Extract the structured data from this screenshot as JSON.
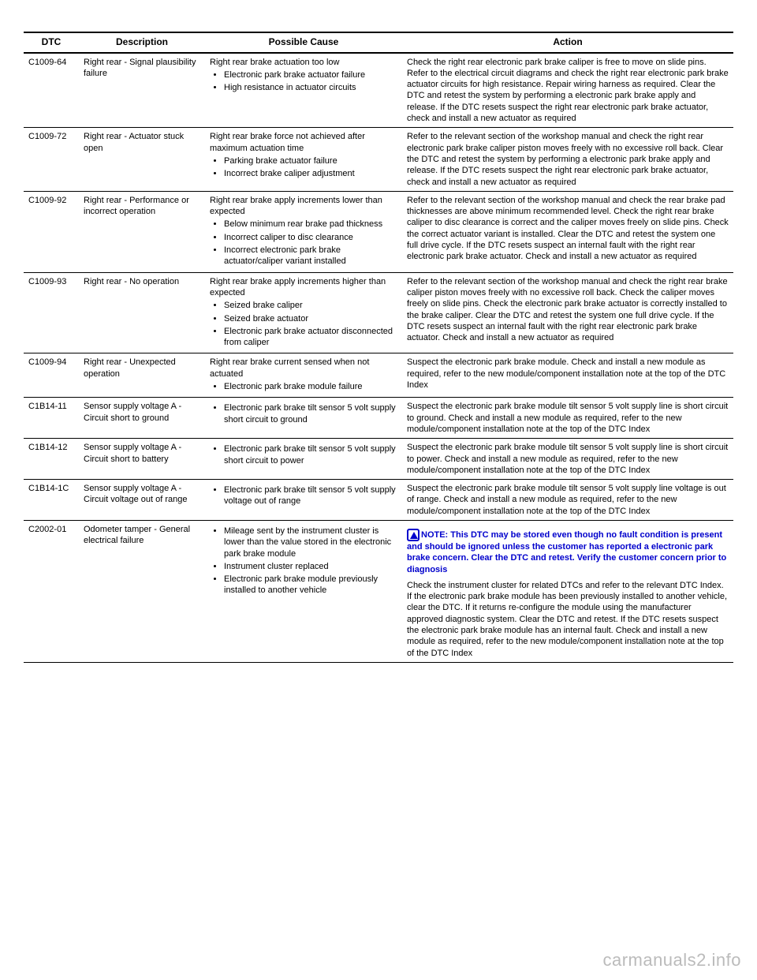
{
  "headers": {
    "dtc": "DTC",
    "desc": "Description",
    "cause": "Possible Cause",
    "action": "Action"
  },
  "colors": {
    "text": "#000000",
    "note": "#0000cc",
    "rule": "#000000",
    "watermark": "#bbbbbb",
    "background": "#ffffff"
  },
  "note": {
    "label": "NOTE:",
    "body": "This DTC may be stored even though no fault condition is present and should be ignored unless the customer has reported a electronic park brake concern. Clear the DTC and retest. Verify the customer concern prior to diagnosis"
  },
  "rows": [
    {
      "dtc": "C1009-64",
      "desc": "Right rear - Signal plausibility failure",
      "cause_prefix": "Right rear brake actuation too low",
      "causes": [
        "Electronic park brake actuator failure",
        "High resistance in actuator circuits"
      ],
      "action": "Check the right rear electronic park brake caliper is free to move on slide pins. Refer to the electrical circuit diagrams and check the right rear electronic park brake actuator circuits for high resistance. Repair wiring harness as required. Clear the DTC and retest the system by performing a electronic park brake apply and release. If the DTC resets suspect the right rear electronic park brake actuator, check and install a new actuator as required"
    },
    {
      "dtc": "C1009-72",
      "desc": "Right rear - Actuator stuck open",
      "cause_prefix": "Right rear brake force not achieved after maximum actuation time",
      "causes": [
        "Parking brake actuator failure",
        "Incorrect brake caliper adjustment"
      ],
      "action": "Refer to the relevant section of the workshop manual and check the right rear electronic park brake caliper piston moves freely with no excessive roll back. Clear the DTC and retest the system by performing a electronic park brake apply and release. If the DTC resets suspect the right rear electronic park brake actuator, check and install a new actuator as required"
    },
    {
      "dtc": "C1009-92",
      "desc": "Right rear - Performance or incorrect operation",
      "cause_prefix": "Right rear brake apply increments lower than expected",
      "causes": [
        "Below minimum rear brake pad thickness",
        "Incorrect caliper to disc clearance",
        "Incorrect electronic park brake actuator/caliper variant installed"
      ],
      "action": "Refer to the relevant section of the workshop manual and check the rear brake pad thicknesses are above minimum recommended level. Check the right rear brake caliper to disc clearance is correct and the caliper moves freely on slide pins. Check the correct actuator variant is installed. Clear the DTC and retest the system one full drive cycle. If the DTC resets suspect an internal fault with the right rear electronic park brake actuator. Check and install a new actuator as required"
    },
    {
      "dtc": "C1009-93",
      "desc": "Right rear - No operation",
      "cause_prefix": "Right rear brake apply increments higher than expected",
      "causes": [
        "Seized brake caliper",
        "Seized brake actuator",
        "Electronic park brake actuator disconnected from caliper"
      ],
      "action": "Refer to the relevant section of the workshop manual and check the right rear brake caliper piston moves freely with no excessive roll back. Check the caliper moves freely on slide pins. Check the electronic park brake actuator is correctly installed to the brake caliper. Clear the DTC and retest the system one full drive cycle. If the DTC resets suspect an internal fault with the right rear electronic park brake actuator. Check and install a new actuator as required"
    },
    {
      "dtc": "C1009-94",
      "desc": "Right rear - Unexpected operation",
      "cause_prefix": "Right rear brake current sensed when not actuated",
      "causes": [
        "Electronic park brake module failure"
      ],
      "action": "Suspect the electronic park brake module. Check and install a new module as required, refer to the new module/component installation note at the top of the DTC Index"
    },
    {
      "dtc": "C1B14-11",
      "desc": "Sensor supply voltage A - Circuit short to ground",
      "cause_prefix": "",
      "causes": [
        "Electronic park brake tilt sensor 5 volt supply short circuit to ground"
      ],
      "action": "Suspect the electronic park brake module tilt sensor 5 volt supply line is short circuit to ground. Check and install a new module as required, refer to the new module/component installation note at the top of the DTC Index"
    },
    {
      "dtc": "C1B14-12",
      "desc": "Sensor supply voltage A - Circuit short to battery",
      "cause_prefix": "",
      "causes": [
        "Electronic park brake tilt sensor 5 volt supply short circuit to power"
      ],
      "action": "Suspect the electronic park brake module tilt sensor 5 volt supply line is short circuit to power. Check and install a new module as required, refer to the new module/component installation note at the top of the DTC Index"
    },
    {
      "dtc": "C1B14-1C",
      "desc": "Sensor supply voltage A - Circuit voltage out of range",
      "cause_prefix": "",
      "causes": [
        "Electronic park brake tilt sensor 5 volt supply voltage out of range"
      ],
      "action": "Suspect the electronic park brake module tilt sensor 5 volt supply line voltage is out of range. Check and install a new module as required, refer to the new module/component installation note at the top of the DTC Index"
    },
    {
      "dtc": "C2002-01",
      "desc": "Odometer tamper - General electrical failure",
      "cause_prefix": "",
      "causes": [
        "Mileage sent by the instrument cluster is lower than the value stored in the electronic park brake module",
        "Instrument cluster replaced",
        "Electronic park brake module previously installed to another vehicle"
      ],
      "has_note": true,
      "action": "Check the instrument cluster for related DTCs and refer to the relevant DTC Index. If the electronic park brake module has been previously installed to another vehicle, clear the DTC. If it returns re-configure the module using the manufacturer approved diagnostic system. Clear the DTC and retest. If the DTC resets suspect the electronic park brake module has an internal fault. Check and install a new module as required, refer to the new module/component installation note at the top of the DTC Index"
    }
  ],
  "watermark": "carmanuals2.info"
}
